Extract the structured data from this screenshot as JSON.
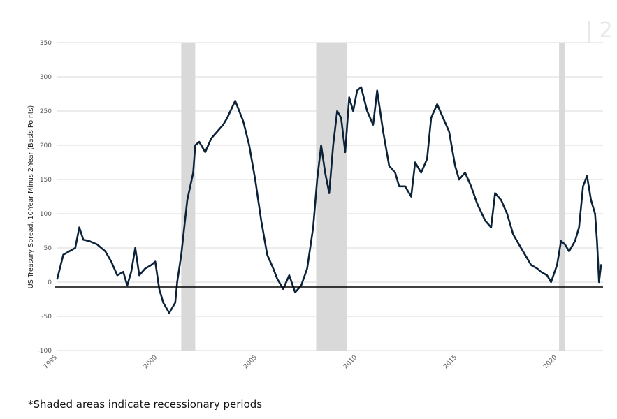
{
  "page_mark": "| 2",
  "footnote": "*Shaded areas indicate recessionary periods",
  "colors": {
    "series": "#0b2238",
    "recession": "#d9d9d9",
    "gridline": "#d9d9d9",
    "zero_line": "#000000"
  },
  "chart_data": {
    "type": "line",
    "title": "",
    "xlabel": "",
    "ylabel": "US Treasury Spread, 10-Year Minus 2-Year (Basis Points)",
    "xlim": [
      1995.0,
      2022.3
    ],
    "ylim": [
      -100,
      350
    ],
    "y_ticks": [
      -100,
      -50,
      0,
      50,
      100,
      150,
      200,
      250,
      300,
      350
    ],
    "y_tick_labels": [
      "-100",
      "-50",
      "0",
      "50",
      "100",
      "150",
      "200",
      "250",
      "300",
      "350"
    ],
    "x_ticks": [
      1995,
      2000,
      2005,
      2010,
      2015,
      2020
    ],
    "x_tick_labels": [
      "1995",
      "2000",
      "2005",
      "2010",
      "2015",
      "2020"
    ],
    "grid": true,
    "legend": "none",
    "recessions": [
      {
        "start": 2001.2,
        "end": 2001.9
      },
      {
        "start": 2007.95,
        "end": 2009.5
      },
      {
        "start": 2020.1,
        "end": 2020.4
      }
    ],
    "series": [
      {
        "x": [
          1995.0,
          1995.3,
          1995.6,
          1995.9,
          1996.1,
          1996.3,
          1996.6,
          1997.0,
          1997.4,
          1997.7,
          1998.0,
          1998.3,
          1998.5,
          1998.7,
          1998.9,
          1999.1,
          1999.4,
          1999.7,
          1999.9,
          2000.1,
          2000.3,
          2000.6,
          2000.9,
          2001.0,
          2001.2,
          2001.5,
          2001.8,
          2001.9,
          2002.1,
          2002.4,
          2002.7,
          2003.0,
          2003.3,
          2003.5,
          2003.9,
          2004.3,
          2004.6,
          2004.9,
          2005.2,
          2005.5,
          2005.8,
          2006.0,
          2006.3,
          2006.6,
          2006.9,
          2007.2,
          2007.5,
          2007.8,
          2008.0,
          2008.2,
          2008.4,
          2008.6,
          2008.8,
          2009.0,
          2009.2,
          2009.4,
          2009.6,
          2009.8,
          2010.0,
          2010.2,
          2010.5,
          2010.8,
          2011.0,
          2011.3,
          2011.6,
          2011.9,
          2012.1,
          2012.4,
          2012.7,
          2012.9,
          2013.2,
          2013.5,
          2013.7,
          2014.0,
          2014.3,
          2014.6,
          2014.9,
          2015.1,
          2015.4,
          2015.7,
          2016.0,
          2016.4,
          2016.7,
          2016.9,
          2017.2,
          2017.5,
          2017.8,
          2018.1,
          2018.4,
          2018.7,
          2019.0,
          2019.2,
          2019.5,
          2019.7,
          2020.0,
          2020.2,
          2020.4,
          2020.6,
          2020.9,
          2021.1,
          2021.3,
          2021.5,
          2021.7,
          2021.9,
          2022.0,
          2022.1,
          2022.2
        ],
        "y": [
          5,
          40,
          45,
          50,
          80,
          62,
          60,
          55,
          45,
          30,
          10,
          15,
          -5,
          15,
          50,
          10,
          20,
          25,
          30,
          -10,
          -30,
          -45,
          -30,
          0,
          40,
          120,
          160,
          200,
          205,
          190,
          210,
          220,
          230,
          240,
          265,
          235,
          200,
          150,
          90,
          40,
          20,
          5,
          -10,
          10,
          -15,
          -5,
          20,
          80,
          150,
          200,
          160,
          130,
          200,
          250,
          240,
          190,
          270,
          250,
          280,
          285,
          250,
          230,
          280,
          220,
          170,
          160,
          140,
          140,
          125,
          175,
          160,
          180,
          240,
          260,
          240,
          220,
          170,
          150,
          160,
          140,
          115,
          90,
          80,
          130,
          120,
          100,
          70,
          55,
          40,
          25,
          20,
          15,
          10,
          0,
          25,
          60,
          55,
          45,
          60,
          80,
          140,
          155,
          120,
          100,
          60,
          0,
          25
        ]
      }
    ]
  }
}
